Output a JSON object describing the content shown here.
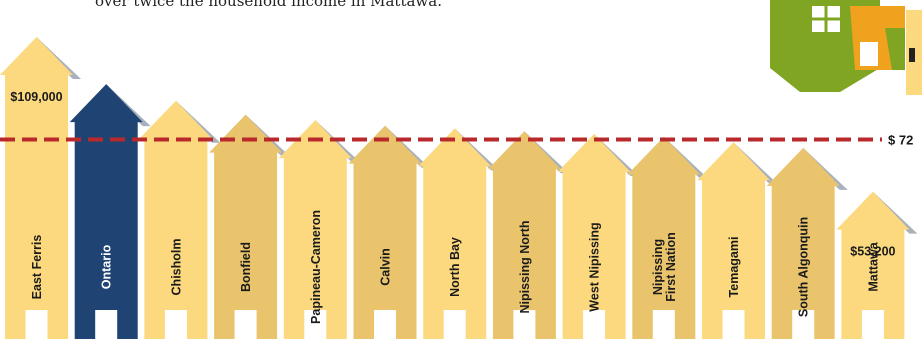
{
  "header": {
    "caption": "over twice the household income in Mattawa."
  },
  "colors": {
    "light_house": "#fcd97e",
    "alt_house": "#e9c46c",
    "highlight_house": "#1f4373",
    "roof_shadow": "#a9b1bd",
    "reference_line": "#b9282b",
    "door": "#ffffff",
    "logo_green": "#7fa523",
    "logo_orange": "#f0a21f"
  },
  "chart_data": {
    "type": "bar",
    "categories": [
      "East Ferris",
      "Ontario",
      "Chisholm",
      "Bonfield",
      "Papineau-Cameron",
      "Calvin",
      "North Bay",
      "Nipissing North",
      "West Nipissing",
      "Nipissing First Nation",
      "Temagami",
      "South Algonquin",
      "Mattawa"
    ],
    "category_lines": [
      [
        "East Ferris"
      ],
      [
        "Ontario"
      ],
      [
        "Chisholm"
      ],
      [
        "Bonfield"
      ],
      [
        "Papineau-Cameron"
      ],
      [
        "Calvin"
      ],
      [
        "North Bay"
      ],
      [
        "Nipissing North"
      ],
      [
        "West Nipissing"
      ],
      [
        "Nipissing",
        "First Nation"
      ],
      [
        "Temagami"
      ],
      [
        "South Algonquin"
      ],
      [
        "Mattawa"
      ]
    ],
    "values": [
      109000,
      92000,
      86000,
      81000,
      79000,
      77000,
      76000,
      75000,
      74000,
      73000,
      71000,
      69000,
      53200
    ],
    "value_labels": [
      "$109,000",
      "",
      "",
      "",
      "",
      "",
      "",
      "",
      "",
      "",
      "",
      "",
      "$53,200"
    ],
    "highlight_index": 1,
    "reference_line": {
      "value": 72000,
      "label": "$ 72"
    },
    "ylim": [
      0,
      112000
    ],
    "title": "",
    "xlabel": "",
    "ylabel": ""
  }
}
